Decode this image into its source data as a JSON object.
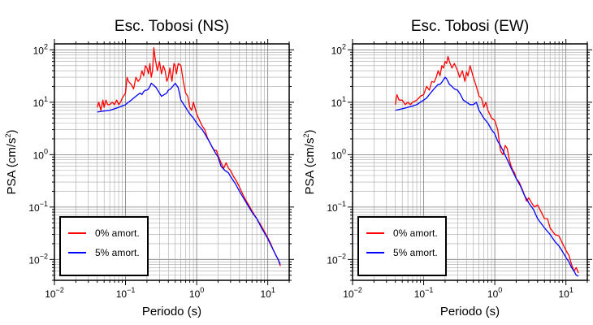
{
  "chart_data": [
    {
      "type": "line",
      "title": "Esc. Tobosi (NS)",
      "xlabel": "Periodo (s)",
      "ylabel_base": "PSA (cm/s",
      "ylabel_exp": "2",
      "ylabel_close": ")",
      "x_scale": "log",
      "y_scale": "log",
      "xlim": [
        0.01,
        20
      ],
      "ylim": [
        0.004,
        130
      ],
      "grid": true,
      "legend_position": "bottom-left",
      "x_ticks": [
        {
          "base": "10",
          "exp": "−2",
          "value": 0.01
        },
        {
          "base": "10",
          "exp": "−1",
          "value": 0.1
        },
        {
          "base": "10",
          "exp": "0",
          "value": 1
        },
        {
          "base": "10",
          "exp": "1",
          "value": 10
        }
      ],
      "y_ticks": [
        {
          "base": "10",
          "exp": "−2",
          "value": 0.01
        },
        {
          "base": "10",
          "exp": "−1",
          "value": 0.1
        },
        {
          "base": "10",
          "exp": "0",
          "value": 1
        },
        {
          "base": "10",
          "exp": "1",
          "value": 10
        },
        {
          "base": "10",
          "exp": "2",
          "value": 100
        }
      ],
      "series": [
        {
          "name": "0% amort.",
          "color": "#ff0000",
          "x": [
            0.04,
            0.042,
            0.045,
            0.048,
            0.05,
            0.053,
            0.056,
            0.06,
            0.065,
            0.07,
            0.075,
            0.08,
            0.085,
            0.09,
            0.1,
            0.105,
            0.11,
            0.12,
            0.13,
            0.14,
            0.15,
            0.16,
            0.17,
            0.18,
            0.19,
            0.2,
            0.21,
            0.22,
            0.23,
            0.24,
            0.25,
            0.26,
            0.28,
            0.3,
            0.32,
            0.34,
            0.36,
            0.38,
            0.4,
            0.42,
            0.45,
            0.48,
            0.5,
            0.52,
            0.55,
            0.6,
            0.65,
            0.7,
            0.75,
            0.8,
            0.85,
            0.9,
            1.0,
            1.1,
            1.2,
            1.3,
            1.4,
            1.5,
            1.6,
            1.7,
            1.8,
            1.9,
            2.0,
            2.2,
            2.4,
            2.6,
            2.8,
            3.0,
            3.3,
            3.6,
            4.0,
            4.5,
            5.0,
            6.0,
            7.0,
            8.0,
            9.0,
            10.0,
            11.0,
            12.0,
            13.0,
            14.0,
            15.0
          ],
          "y": [
            8,
            10,
            7,
            11,
            8,
            11,
            9,
            9,
            10,
            9,
            11,
            9,
            10,
            12,
            15,
            30,
            25,
            22,
            18,
            30,
            25,
            28,
            40,
            32,
            50,
            45,
            35,
            55,
            30,
            40,
            110,
            70,
            40,
            60,
            35,
            50,
            40,
            25,
            30,
            45,
            25,
            55,
            50,
            35,
            55,
            50,
            25,
            15,
            13,
            8,
            7,
            10,
            6,
            4.5,
            3.5,
            3.0,
            2.2,
            1.8,
            1.5,
            1.3,
            1.2,
            1.2,
            0.95,
            0.7,
            0.55,
            0.7,
            0.55,
            0.5,
            0.38,
            0.32,
            0.24,
            0.17,
            0.13,
            0.085,
            0.06,
            0.045,
            0.034,
            0.026,
            0.02,
            0.015,
            0.012,
            0.01,
            0.0075
          ]
        },
        {
          "name": "5% amort.",
          "color": "#0000ff",
          "x": [
            0.04,
            0.05,
            0.06,
            0.07,
            0.08,
            0.09,
            0.1,
            0.11,
            0.12,
            0.13,
            0.14,
            0.15,
            0.16,
            0.17,
            0.18,
            0.19,
            0.2,
            0.21,
            0.22,
            0.23,
            0.24,
            0.25,
            0.27,
            0.3,
            0.32,
            0.35,
            0.38,
            0.4,
            0.43,
            0.46,
            0.5,
            0.55,
            0.6,
            0.7,
            0.8,
            0.9,
            1.0,
            1.1,
            1.2,
            1.3,
            1.4,
            1.5,
            1.7,
            1.9,
            2.0,
            2.2,
            2.5,
            2.8,
            3.0,
            3.5,
            4.0,
            5.0,
            6.0,
            7.0,
            8.0,
            9.0,
            10.0,
            11.0,
            12.0,
            13.0,
            14.0,
            15.0
          ],
          "y": [
            6.5,
            6.8,
            7.0,
            7.5,
            8,
            8.5,
            9,
            10,
            11,
            12,
            13,
            14,
            15,
            14,
            16,
            17,
            17,
            18,
            20,
            23,
            22,
            21,
            19,
            15,
            13,
            14,
            15,
            17,
            18,
            20,
            23,
            19,
            11,
            8,
            6,
            5,
            4,
            3.4,
            3.0,
            2.5,
            2.1,
            1.8,
            1.3,
            1.0,
            0.9,
            0.6,
            0.5,
            0.45,
            0.38,
            0.28,
            0.2,
            0.12,
            0.08,
            0.06,
            0.042,
            0.032,
            0.025,
            0.019,
            0.015,
            0.012,
            0.01,
            0.008
          ]
        }
      ]
    },
    {
      "type": "line",
      "title": "Esc. Tobosi (EW)",
      "xlabel": "Periodo (s)",
      "ylabel_base": "PSA (cm/s",
      "ylabel_exp": "2",
      "ylabel_close": ")",
      "x_scale": "log",
      "y_scale": "log",
      "xlim": [
        0.01,
        20
      ],
      "ylim": [
        0.004,
        130
      ],
      "grid": true,
      "legend_position": "bottom-left",
      "x_ticks": [
        {
          "base": "10",
          "exp": "−2",
          "value": 0.01
        },
        {
          "base": "10",
          "exp": "−1",
          "value": 0.1
        },
        {
          "base": "10",
          "exp": "0",
          "value": 1
        },
        {
          "base": "10",
          "exp": "1",
          "value": 10
        }
      ],
      "y_ticks": [
        {
          "base": "10",
          "exp": "−2",
          "value": 0.01
        },
        {
          "base": "10",
          "exp": "−1",
          "value": 0.1
        },
        {
          "base": "10",
          "exp": "0",
          "value": 1
        },
        {
          "base": "10",
          "exp": "1",
          "value": 10
        },
        {
          "base": "10",
          "exp": "2",
          "value": 100
        }
      ],
      "series": [
        {
          "name": "0% amort.",
          "color": "#ff0000",
          "x": [
            0.04,
            0.042,
            0.045,
            0.05,
            0.055,
            0.06,
            0.065,
            0.07,
            0.08,
            0.09,
            0.1,
            0.11,
            0.12,
            0.13,
            0.14,
            0.15,
            0.16,
            0.17,
            0.18,
            0.19,
            0.2,
            0.21,
            0.22,
            0.23,
            0.25,
            0.27,
            0.3,
            0.32,
            0.35,
            0.38,
            0.4,
            0.42,
            0.45,
            0.5,
            0.55,
            0.6,
            0.65,
            0.7,
            0.75,
            0.8,
            0.9,
            1.0,
            1.1,
            1.2,
            1.3,
            1.4,
            1.5,
            1.6,
            1.7,
            1.8,
            1.9,
            2.0,
            2.2,
            2.5,
            2.8,
            3.0,
            3.3,
            3.6,
            4.0,
            4.5,
            5.0,
            5.5,
            6.0,
            7.0,
            8.0,
            9.0,
            10.0,
            11.0,
            12.0,
            13.0,
            14.0,
            15.0
          ],
          "y": [
            9,
            14,
            11,
            11,
            9,
            10,
            9,
            10,
            11,
            13,
            14,
            20,
            17,
            25,
            24,
            30,
            40,
            32,
            50,
            45,
            60,
            55,
            75,
            60,
            45,
            55,
            40,
            30,
            40,
            25,
            38,
            32,
            50,
            30,
            20,
            13,
            12,
            8,
            10,
            7,
            5,
            4.5,
            3.0,
            1.2,
            1.0,
            1.5,
            1.3,
            0.8,
            0.6,
            0.5,
            0.45,
            0.35,
            0.3,
            0.2,
            0.13,
            0.15,
            0.12,
            0.1,
            0.11,
            0.08,
            0.06,
            0.06,
            0.04,
            0.03,
            0.028,
            0.02,
            0.015,
            0.012,
            0.008,
            0.006,
            0.007,
            0.0055
          ]
        },
        {
          "name": "5% amort.",
          "color": "#0000ff",
          "x": [
            0.04,
            0.05,
            0.06,
            0.07,
            0.08,
            0.09,
            0.1,
            0.11,
            0.12,
            0.13,
            0.14,
            0.15,
            0.16,
            0.17,
            0.18,
            0.19,
            0.2,
            0.21,
            0.22,
            0.23,
            0.25,
            0.27,
            0.3,
            0.33,
            0.36,
            0.4,
            0.45,
            0.5,
            0.55,
            0.6,
            0.7,
            0.8,
            0.9,
            1.0,
            1.1,
            1.2,
            1.3,
            1.5,
            1.7,
            2.0,
            2.3,
            2.6,
            3.0,
            3.5,
            4.0,
            5.0,
            6.0,
            7.0,
            8.0,
            9.0,
            10.0,
            11.0,
            12.0,
            13.0,
            14.0,
            15.0
          ],
          "y": [
            7,
            7.5,
            8,
            8.5,
            9,
            10,
            11,
            12,
            14,
            16,
            18,
            20,
            22,
            22,
            24,
            27,
            30,
            28,
            25,
            22,
            20,
            18,
            17,
            14,
            11,
            10,
            9,
            9,
            10,
            7,
            5,
            4,
            3,
            2.5,
            1.8,
            1.5,
            1.2,
            0.8,
            0.55,
            0.35,
            0.25,
            0.17,
            0.12,
            0.09,
            0.06,
            0.04,
            0.03,
            0.022,
            0.018,
            0.014,
            0.011,
            0.009,
            0.007,
            0.006,
            0.005,
            0.0048
          ]
        }
      ]
    }
  ]
}
